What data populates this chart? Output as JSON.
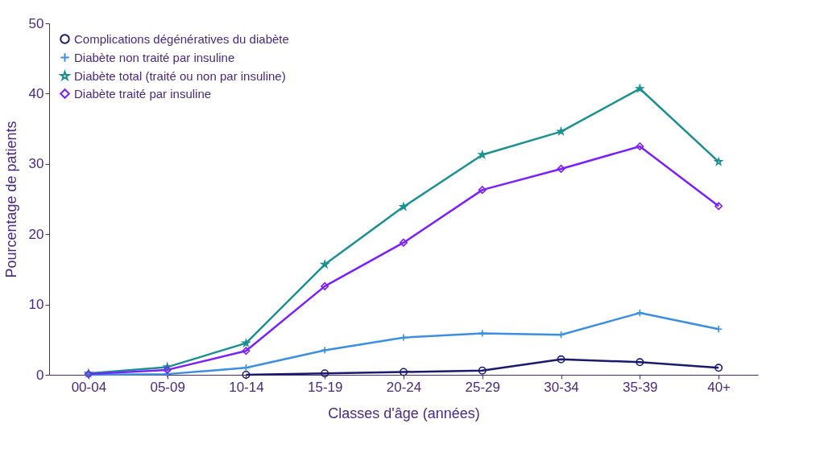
{
  "chart_data": {
    "type": "line",
    "xlabel": "Classes d'âge (années)",
    "ylabel": "Pourcentage de patients",
    "categories": [
      "00-04",
      "05-09",
      "10-14",
      "15-19",
      "20-24",
      "25-29",
      "30-34",
      "35-39",
      "40+"
    ],
    "ylim": [
      0,
      50
    ],
    "yticks": [
      0,
      10,
      20,
      30,
      40,
      50
    ],
    "grid": false,
    "legend": "top left",
    "series": [
      {
        "name": "Complications dégénératives du diabète",
        "color": "#1a1a6e",
        "marker": "circle",
        "values": [
          null,
          null,
          0,
          0.2,
          0.4,
          0.6,
          2.2,
          1.8,
          1.0
        ]
      },
      {
        "name": "Diabète non traité par insuline",
        "color": "#3b8fe0",
        "marker": "cross",
        "values": [
          0,
          0.1,
          1.0,
          3.5,
          5.3,
          5.9,
          5.7,
          8.8,
          6.5
        ]
      },
      {
        "name": "Diabète total (traité ou non par insuline)",
        "color": "#1a9090",
        "marker": "star",
        "values": [
          0.2,
          1.1,
          4.5,
          15.7,
          23.9,
          31.3,
          34.6,
          40.7,
          30.3
        ]
      },
      {
        "name": "Diabète traité par insuline",
        "color": "#7b1fff",
        "marker": "diamond",
        "values": [
          0.1,
          0.7,
          3.4,
          12.6,
          18.8,
          26.3,
          29.3,
          32.5,
          24.0
        ]
      }
    ]
  }
}
